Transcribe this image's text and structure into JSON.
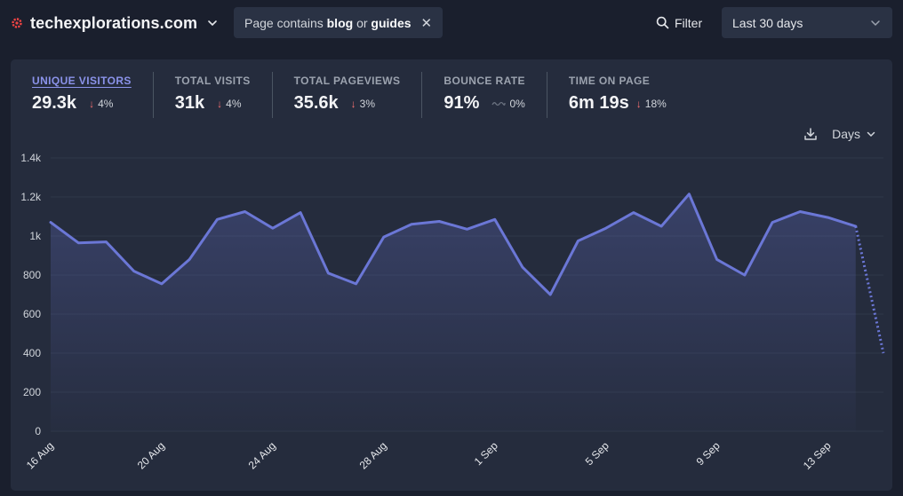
{
  "header": {
    "site_name": "techexplorations.com",
    "filter_prefix": "Page contains",
    "filter_term_1": "blog",
    "filter_joiner": "or",
    "filter_term_2": "guides",
    "filter_label": "Filter",
    "date_range": "Last 30 days"
  },
  "stats": [
    {
      "label": "UNIQUE VISITORS",
      "value": "29.3k",
      "change": "4%",
      "trend": "down"
    },
    {
      "label": "TOTAL VISITS",
      "value": "31k",
      "change": "4%",
      "trend": "down"
    },
    {
      "label": "TOTAL PAGEVIEWS",
      "value": "35.6k",
      "change": "3%",
      "trend": "down"
    },
    {
      "label": "BOUNCE RATE",
      "value": "91%",
      "change": "0%",
      "trend": "flat"
    },
    {
      "label": "TIME ON PAGE",
      "value": "6m 19s",
      "change": "18%",
      "trend": "down"
    }
  ],
  "controls": {
    "interval": "Days"
  },
  "colors": {
    "accent": "#6b77d6",
    "negative": "#f87171"
  },
  "chart_data": {
    "type": "line",
    "x": [
      "16 Aug",
      "17 Aug",
      "18 Aug",
      "19 Aug",
      "20 Aug",
      "21 Aug",
      "22 Aug",
      "23 Aug",
      "24 Aug",
      "25 Aug",
      "26 Aug",
      "27 Aug",
      "28 Aug",
      "29 Aug",
      "30 Aug",
      "31 Aug",
      "1 Sep",
      "2 Sep",
      "3 Sep",
      "4 Sep",
      "5 Sep",
      "6 Sep",
      "7 Sep",
      "8 Sep",
      "9 Sep",
      "10 Sep",
      "11 Sep",
      "12 Sep",
      "13 Sep",
      "14 Sep",
      "15 Sep"
    ],
    "x_tick_labels": [
      "16 Aug",
      "20 Aug",
      "24 Aug",
      "28 Aug",
      "1 Sep",
      "5 Sep",
      "9 Sep",
      "13 Sep"
    ],
    "series": [
      {
        "values": [
          1070,
          965,
          970,
          820,
          755,
          880,
          1085,
          1125,
          1040,
          1120,
          810,
          755,
          995,
          1060,
          1075,
          1035,
          1085,
          840,
          700,
          975,
          1040,
          1120,
          1050,
          1215,
          880,
          800,
          1070,
          1125,
          1095,
          1050,
          400
        ]
      }
    ],
    "incomplete_last_point": true,
    "y_ticks": [
      0,
      200,
      400,
      600,
      800,
      "1k",
      "1.2k",
      "1.4k"
    ],
    "ylim": [
      0,
      1400
    ],
    "grid": true
  }
}
